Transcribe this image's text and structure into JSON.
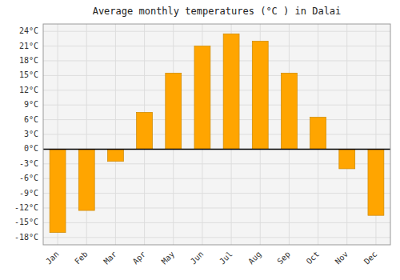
{
  "chart_data": {
    "type": "bar",
    "title": "Average monthly temperatures (°C ) in Dalai",
    "categories": [
      "Jan",
      "Feb",
      "Mar",
      "Apr",
      "May",
      "Jun",
      "Jul",
      "Aug",
      "Sep",
      "Oct",
      "Nov",
      "Dec"
    ],
    "values": [
      -17,
      -12.5,
      -2.5,
      7.5,
      15.5,
      21,
      23.5,
      22,
      15.5,
      6.5,
      -4,
      -13.5
    ],
    "color": "#FFA500",
    "ylim": [
      -19.5,
      25.5
    ],
    "yticks": [
      {
        "value": -18,
        "label": "-18°C"
      },
      {
        "value": -15,
        "label": "-15°C"
      },
      {
        "value": -12,
        "label": "-12°C"
      },
      {
        "value": -9,
        "label": "-9°C"
      },
      {
        "value": -6,
        "label": "-6°C"
      },
      {
        "value": -3,
        "label": "-3°C"
      },
      {
        "value": 0,
        "label": "0°C"
      },
      {
        "value": 3,
        "label": "3°C"
      },
      {
        "value": 6,
        "label": "6°C"
      },
      {
        "value": 9,
        "label": "9°C"
      },
      {
        "value": 12,
        "label": "12°C"
      },
      {
        "value": 15,
        "label": "15°C"
      },
      {
        "value": 18,
        "label": "18°C"
      },
      {
        "value": 21,
        "label": "21°C"
      },
      {
        "value": 24,
        "label": "24°C"
      }
    ],
    "grid": true
  }
}
